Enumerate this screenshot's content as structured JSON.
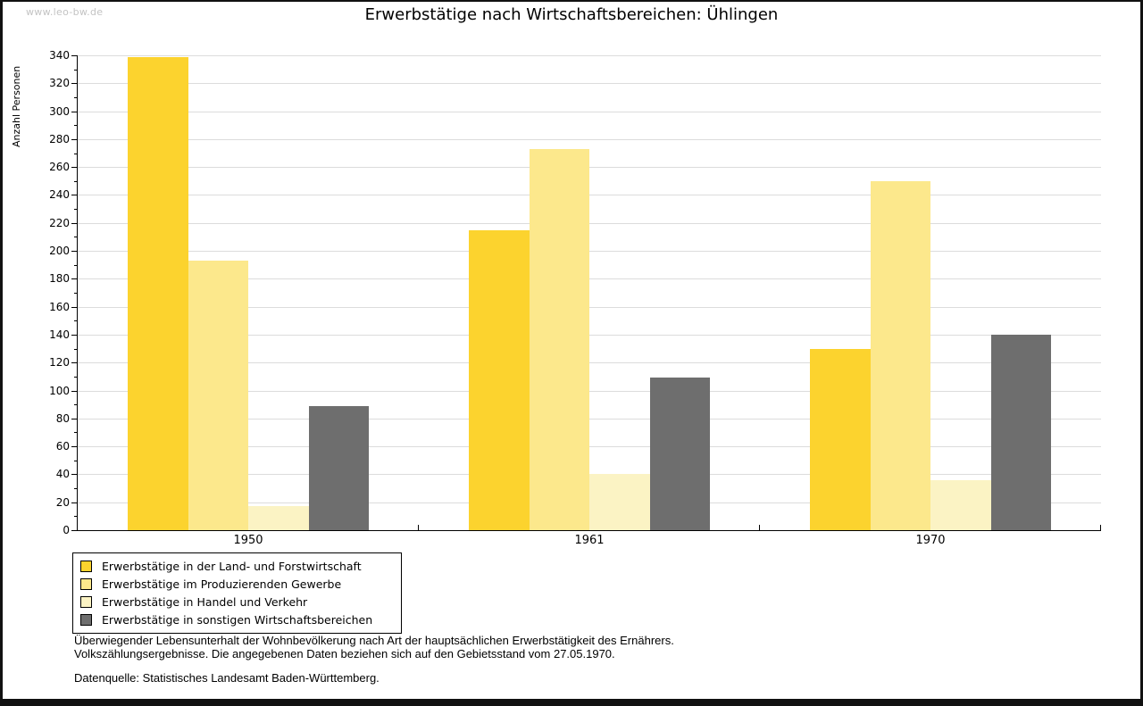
{
  "watermark": "www.leo-bw.de",
  "title": "Erwerbstätige nach Wirtschaftsbereichen: Ühlingen",
  "chart_data": {
    "type": "bar",
    "title": "Erwerbstätige nach Wirtschaftsbereichen: Ühlingen",
    "xlabel": "",
    "ylabel": "Anzahl Personen",
    "ylim": [
      0,
      340
    ],
    "ytick_step": 20,
    "yminor_step": 10,
    "grid": true,
    "legend_position": "bottom-left",
    "categories": [
      "1950",
      "1961",
      "1970"
    ],
    "series": [
      {
        "name": "Erwerbstätige in der Land- und Forstwirtschaft",
        "color": "#FCD32E",
        "values": [
          339,
          215,
          130
        ]
      },
      {
        "name": "Erwerbstätige im Produzierenden Gewerbe",
        "color": "#FCE88C",
        "values": [
          193,
          273,
          250
        ]
      },
      {
        "name": "Erwerbstätige in Handel und Verkehr",
        "color": "#FBF3C4",
        "values": [
          17,
          40,
          36
        ]
      },
      {
        "name": "Erwerbstätige in sonstigen Wirtschaftsbereichen",
        "color": "#6E6E6E",
        "values": [
          89,
          109,
          140
        ]
      }
    ]
  },
  "footnotes": {
    "line1": "Überwiegender Lebensunterhalt der Wohnbevölkerung nach Art der hauptsächlichen Erwerbstätigkeit des Ernährers.",
    "line2": "Volkszählungsergebnisse. Die angegebenen Daten beziehen sich auf den Gebietsstand vom 27.05.1970.",
    "source": "Datenquelle: Statistisches Landesamt Baden-Württemberg."
  }
}
